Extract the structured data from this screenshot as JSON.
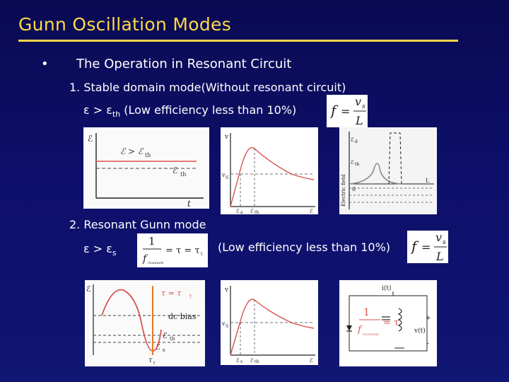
{
  "title": "Gunn Oscillation Modes",
  "bullet_marker": "•",
  "bullet": "The Operation in Resonant Circuit",
  "section1": {
    "heading": "1. Stable domain mode(Without resonant circuit)",
    "condition_prefix": "ε > ε",
    "condition_sub": "th",
    "condition_note": " (Low efficiency less than 10%)",
    "formula": {
      "f": "f",
      "eq": "=",
      "num": "v",
      "num_sub": "s",
      "den": "L"
    },
    "fig1": {
      "axis_y": "ℰ",
      "axis_x": "t",
      "curve_label": "ℰ > ℰ",
      "curve_label_sub": "th",
      "line_label": "ℰ",
      "line_label_sub": "th"
    },
    "fig2": {
      "axis_y": "v",
      "mark_vs": "v",
      "mark_vs_sub": "S",
      "x_tick1": "ℰ",
      "x_tick1_sub": "a",
      "x_tick2": "ℰ",
      "x_tick2_sub": "th",
      "x_axis": "ℰ"
    },
    "fig3": {
      "axis_label": "Electric field",
      "l1": "ℰ",
      "l1_sub": "d",
      "l2": "ℰ",
      "l2_sub": "th",
      "origin": "0",
      "end": "L"
    }
  },
  "section2": {
    "heading": "2. Resonant Gunn mode",
    "condition_prefix": "ε > ε",
    "condition_sub": "s",
    "formula_tau": {
      "num": "1",
      "den": "f",
      "den_sub": "resonant",
      "eq": "= τ = τ",
      "tau_sub": "t"
    },
    "condition_note": "(Low efficiency less than 10%)",
    "formula": {
      "f": "f",
      "eq": "=",
      "num": "v",
      "num_sub": "s",
      "den": "L"
    },
    "fig4": {
      "axis_y": "ℰ",
      "tau_label": "τ = τ",
      "tau_sub": "t",
      "dc": "dc bias",
      "th": "ℰ",
      "th_sub": "th",
      "s": "ℰ",
      "s_sub": "s",
      "tau_bottom": "τ",
      "tau_bottom_sub": "t"
    },
    "fig5": {
      "axis_y": "v",
      "mark_vs": "v",
      "mark_vs_sub": "S",
      "x_tick1": "ℰ",
      "x_tick1_sub": "s",
      "x_tick2": "ℰ",
      "x_tick2_sub": "th",
      "x_axis": "ℰ"
    },
    "fig6": {
      "current": "i(t)",
      "overlay_num": "1",
      "overlay_den": "f",
      "overlay_den_sub": "resonant",
      "overlay_eq": "= τ",
      "plus": "+",
      "minus": "-",
      "voltage": "v(t)"
    }
  }
}
